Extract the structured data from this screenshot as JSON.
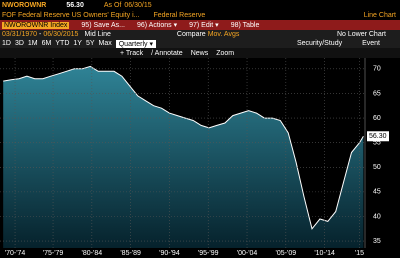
{
  "header": {
    "ticker": "NWOROWNR",
    "price": "56.30",
    "as_of_label": "As Of",
    "as_of": "06/30/15",
    "title": "FOF Federal Reserve US Owners' Equity i...",
    "source": "Federal Reserve",
    "chart_kind": "Line Chart"
  },
  "toolbar": {
    "security": "NWOROWNR Index",
    "buttons": [
      "95) Save As...",
      "96) Actions ▾",
      "97) Edit ▾",
      "98) Table"
    ]
  },
  "range_bar": {
    "start": "03/31/1970",
    "dash": "-",
    "end": "06/30/2015",
    "mid": "Mid Line",
    "compare": "Compare",
    "mov": "Mov. Avgs",
    "lower": "No Lower Chart"
  },
  "period_bar": {
    "periods": [
      "1D",
      "3D",
      "1M",
      "6M",
      "YTD",
      "1Y",
      "5Y",
      "Max"
    ],
    "frequency": "Quarterly ▾",
    "study": "Security/Study",
    "event": "Event"
  },
  "tools": [
    "+ Track",
    "/ Annotate",
    "News",
    "Zoom"
  ],
  "chart_data": {
    "type": "area",
    "color": "#ffffff",
    "fill_top": "#2f8396",
    "fill_bottom": "#06222c",
    "grid": true,
    "x": [
      1970,
      1971,
      1972,
      1973,
      1974,
      1975,
      1976,
      1977,
      1978,
      1979,
      1980,
      1981,
      1982,
      1983,
      1984,
      1985,
      1986,
      1987,
      1988,
      1989,
      1990,
      1991,
      1992,
      1993,
      1994,
      1995,
      1996,
      1997,
      1998,
      1999,
      2000,
      2001,
      2002,
      2003,
      2004,
      2005,
      2006,
      2007,
      2008,
      2009,
      2010,
      2011,
      2012,
      2013,
      2014,
      2015,
      2015.5
    ],
    "values": [
      67.5,
      67.8,
      68,
      68.5,
      68,
      68,
      68.5,
      69,
      69.5,
      70,
      70,
      70.5,
      69.5,
      69.5,
      69.5,
      68.5,
      66.5,
      64.5,
      63.5,
      62.5,
      62,
      61,
      60.5,
      60,
      59.5,
      58.5,
      58,
      58.5,
      59,
      60.5,
      61,
      61.5,
      61,
      60,
      60,
      59.5,
      57,
      51,
      44,
      37.5,
      39.5,
      39,
      41,
      47,
      53,
      55,
      56.3
    ],
    "xlim": [
      1969.6,
      2015.7
    ],
    "xticks": [
      {
        "value": 1971.5,
        "label": "'70-'74"
      },
      {
        "value": 1976.3,
        "label": "'75-'79"
      },
      {
        "value": 1981.2,
        "label": "'80-'84"
      },
      {
        "value": 1986.1,
        "label": "'85-'89"
      },
      {
        "value": 1991,
        "label": "'90-'94"
      },
      {
        "value": 1995.9,
        "label": "'95-'99"
      },
      {
        "value": 2000.8,
        "label": "'00-'04"
      },
      {
        "value": 2005.7,
        "label": "'05-'09"
      },
      {
        "value": 2010.6,
        "label": "'10-'14"
      },
      {
        "value": 2015,
        "label": "'15"
      }
    ],
    "ylim": [
      33.6,
      72.2
    ],
    "yticks": [
      35,
      40,
      45,
      50,
      55,
      60,
      65,
      70
    ],
    "last_label": {
      "value": 56.3,
      "label": "56.30"
    }
  }
}
